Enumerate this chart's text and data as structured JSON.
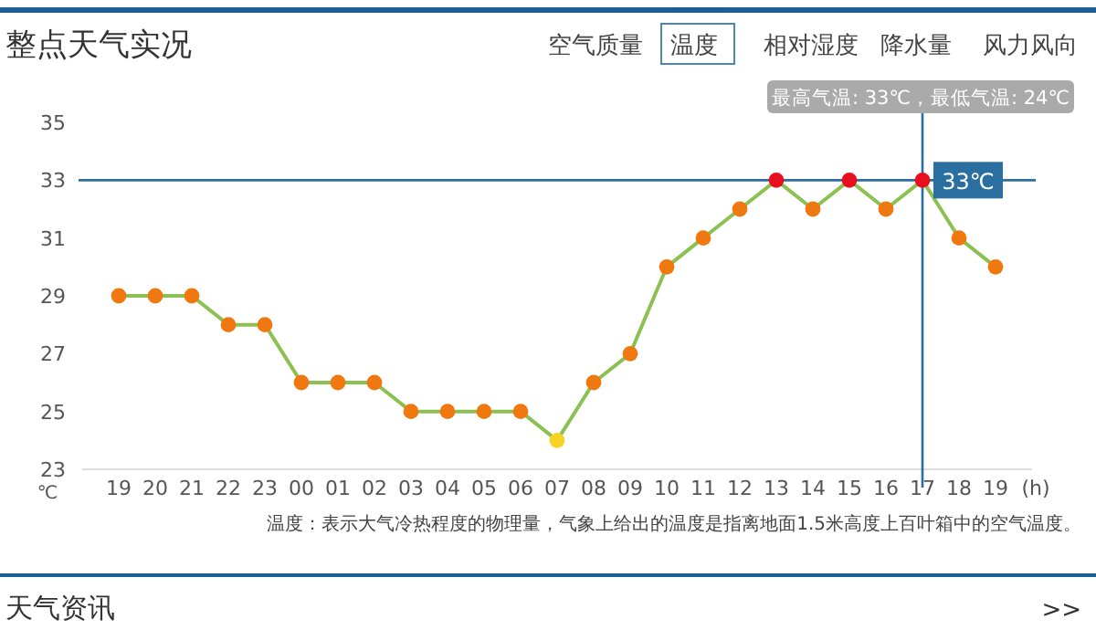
{
  "chart_data": {
    "type": "line",
    "title": "整点天气实况",
    "xlabel": "(h)",
    "ylabel": "℃",
    "categories": [
      "19",
      "20",
      "21",
      "22",
      "23",
      "00",
      "01",
      "02",
      "03",
      "04",
      "05",
      "06",
      "07",
      "08",
      "09",
      "10",
      "11",
      "12",
      "13",
      "14",
      "15",
      "16",
      "17",
      "18",
      "19"
    ],
    "series": [
      {
        "color": "#8cc152",
        "values": [
          29,
          29,
          29,
          28,
          28,
          26,
          26,
          26,
          25,
          25,
          25,
          25,
          24,
          26,
          27,
          30,
          31,
          32,
          33,
          32,
          33,
          32,
          33,
          31,
          30
        ],
        "colors": [
          "#f07810",
          "#f07810",
          "#f07810",
          "#f07810",
          "#f07810",
          "#f07810",
          "#f07810",
          "#f07810",
          "#f07810",
          "#f07810",
          "#f07810",
          "#f07810",
          "#f5d327",
          "#f07810",
          "#f07810",
          "#f07810",
          "#f07810",
          "#f07810",
          "#e8101c",
          "#f07810",
          "#e8101c",
          "#f07810",
          "#e8101c",
          "#f07810",
          "#f07810"
        ]
      }
    ],
    "ylim": [
      23,
      35
    ],
    "yticks": [
      23,
      25,
      27,
      29,
      31,
      33,
      35
    ],
    "marker": "circle",
    "grid": false,
    "ref_lines": [
      {
        "axis": "x",
        "value": "17",
        "color": "#2a6fa0"
      },
      {
        "axis": "y",
        "value": 33,
        "label": "33℃",
        "color": "#2a6fa0"
      }
    ],
    "annotations": [
      "空气质量",
      "温度",
      "相对湿度",
      "降水量",
      "风力风向",
      "最高气温: 33℃，最低气温: 24℃",
      "温度：表示大气冷热程度的物理量，气象上给出的温度是指离地面1.5米高度上百叶箱中的空气温度。",
      "天气资讯",
      ">>"
    ]
  }
}
